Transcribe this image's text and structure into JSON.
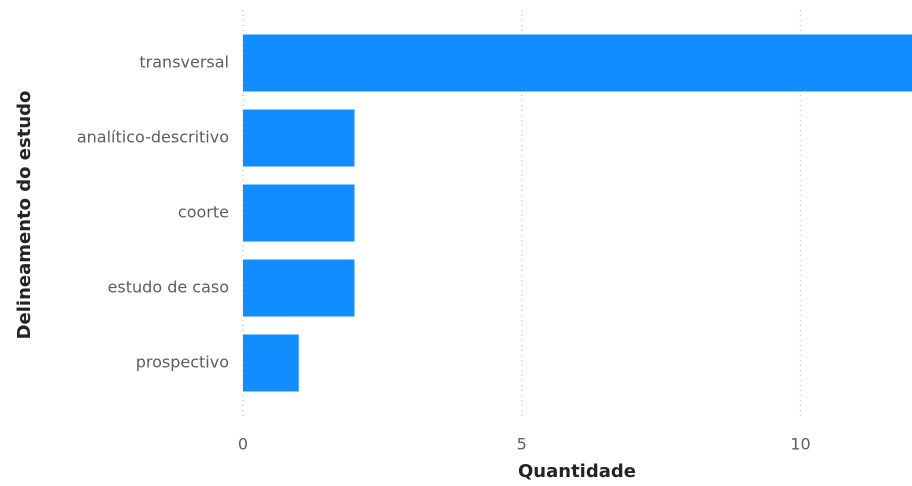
{
  "chart_data": {
    "type": "bar",
    "orientation": "horizontal",
    "categories": [
      "transversal",
      "analítico-descritivo",
      "coorte",
      "estudo de caso",
      "prospectivo"
    ],
    "values": [
      12,
      2,
      2,
      2,
      1
    ],
    "color": "#118dff",
    "xlim": [
      0,
      12
    ],
    "xticks": [
      0,
      5,
      10
    ],
    "grid": true,
    "xlabel": "Quantidade",
    "ylabel": "Delineamento do estudo"
  }
}
